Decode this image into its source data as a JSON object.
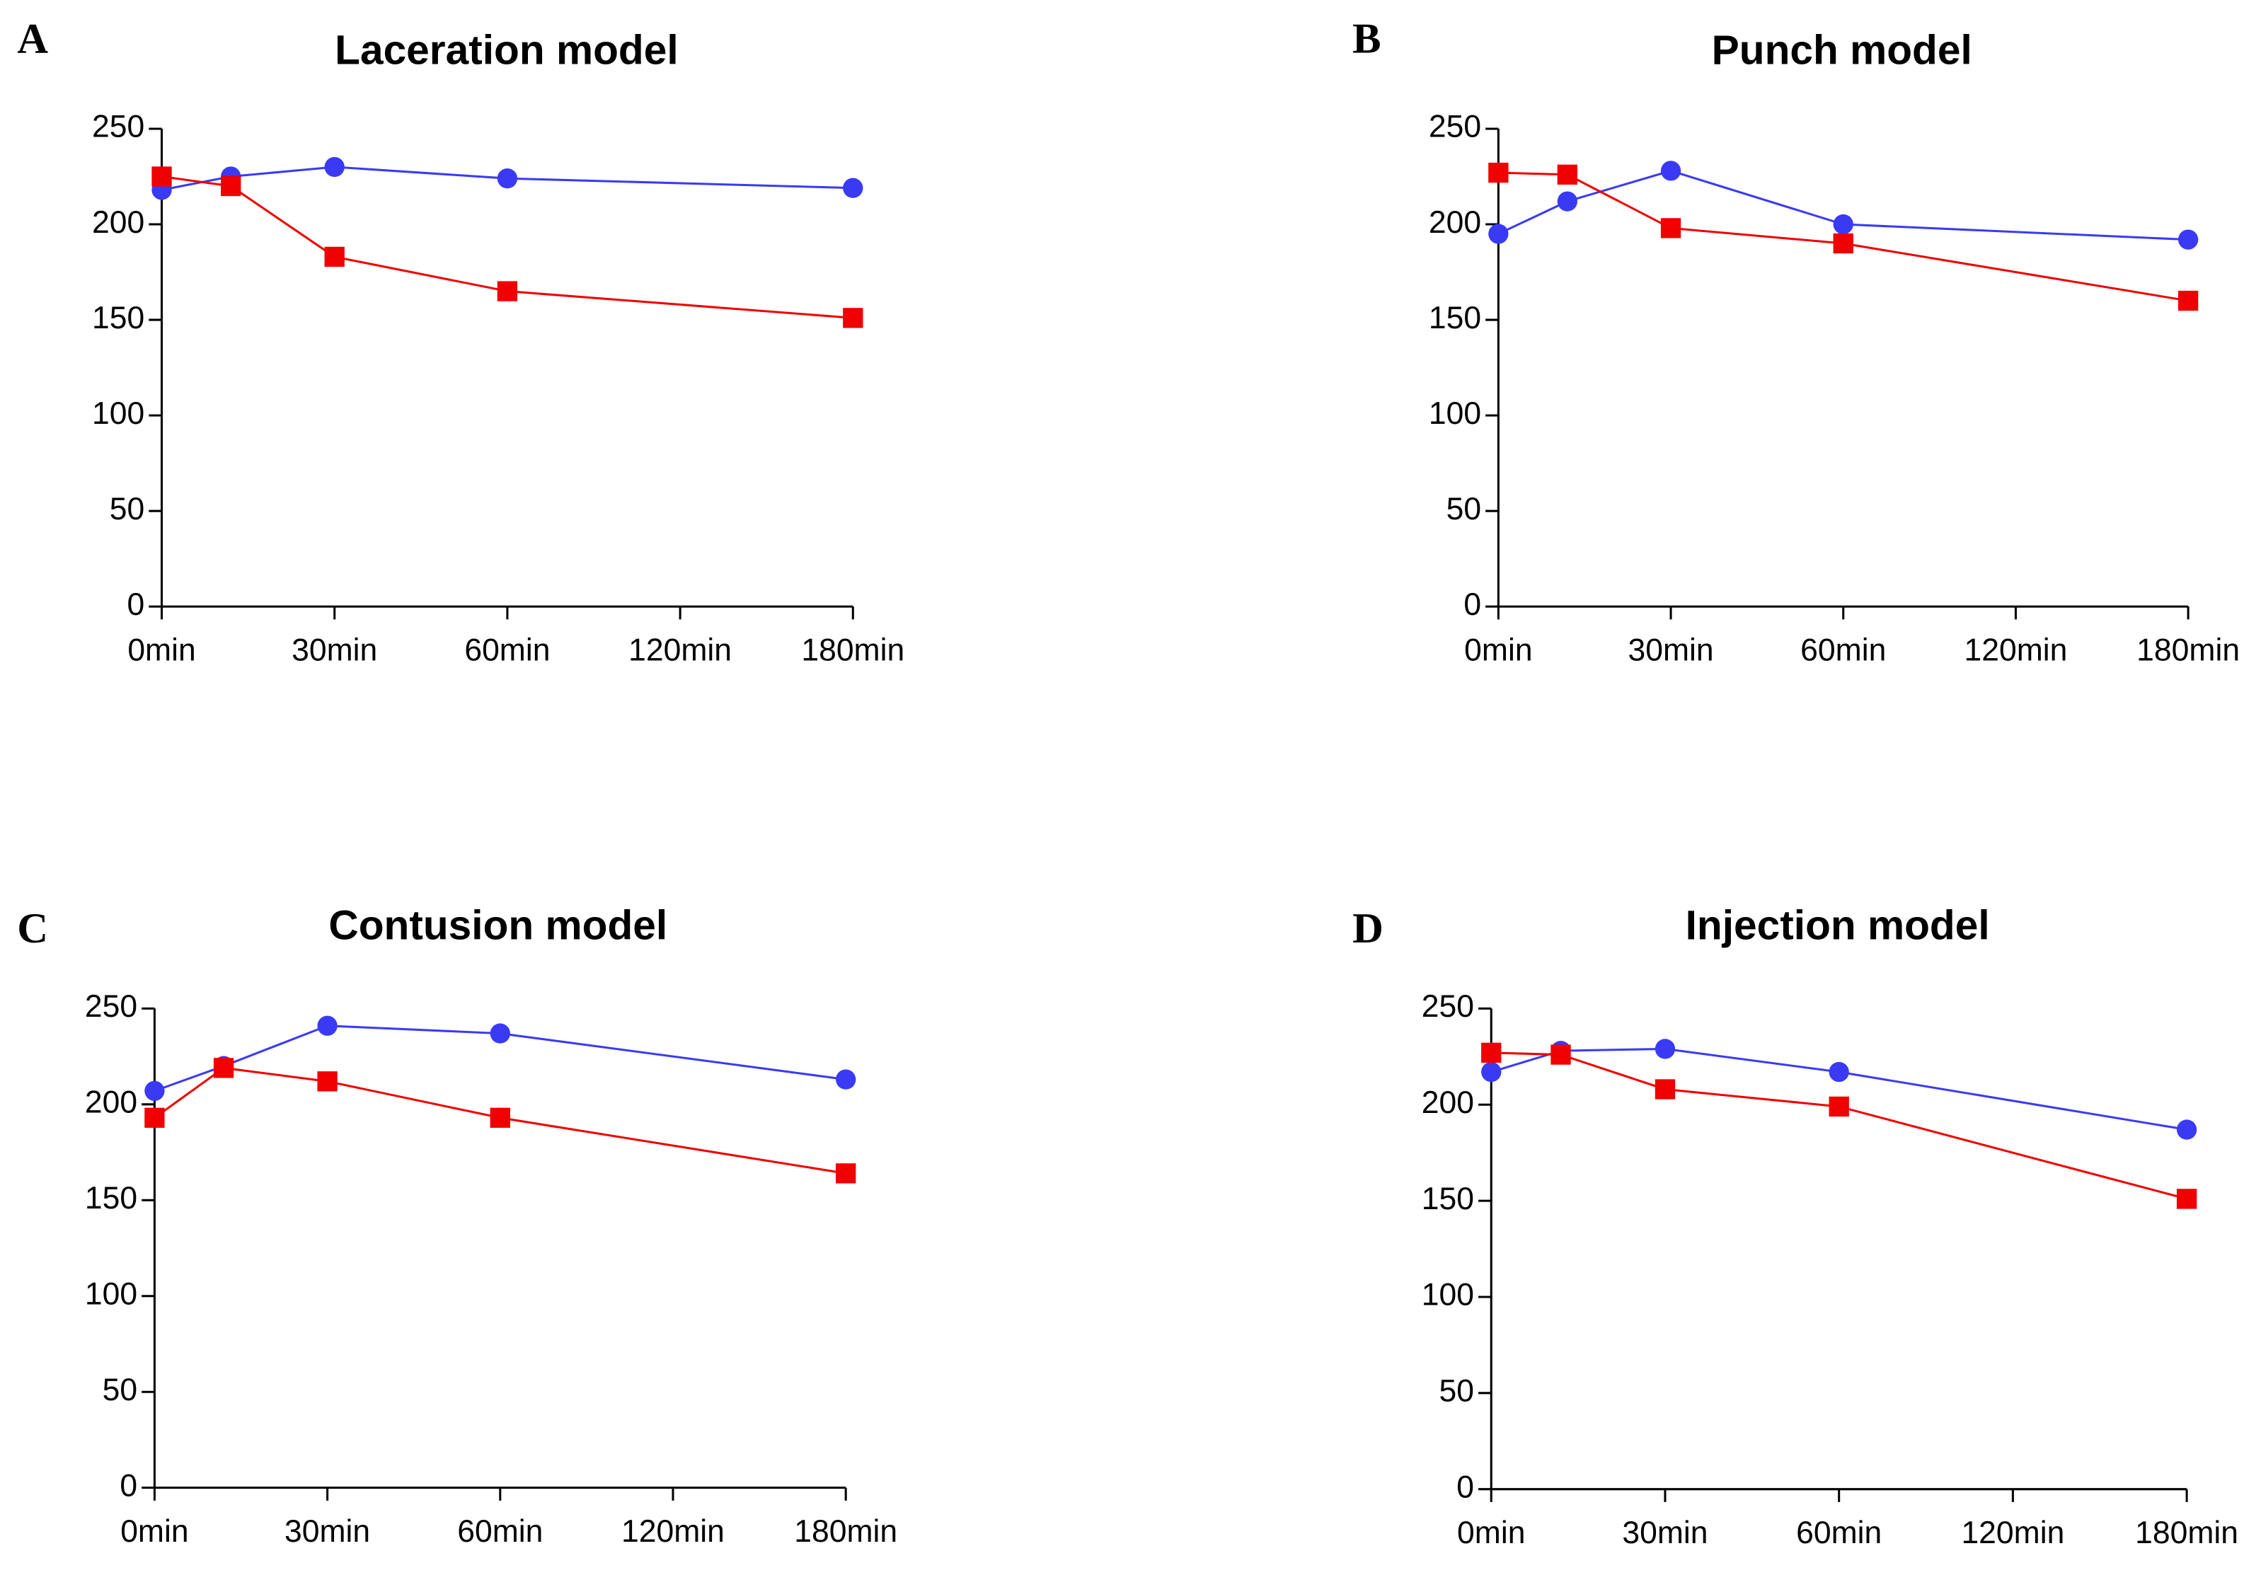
{
  "chart_data": [
    {
      "type": "line",
      "panel": "A",
      "title": "Laceration model",
      "x": [
        0,
        0.4,
        1,
        2,
        4
      ],
      "xlim": [
        0,
        4
      ],
      "xticks": [
        {
          "value": 0,
          "label": "0min"
        },
        {
          "value": 1,
          "label": "30min"
        },
        {
          "value": 2,
          "label": "60min"
        },
        {
          "value": 3,
          "label": "120min"
        },
        {
          "value": 4,
          "label": "180min"
        }
      ],
      "ylim": [
        0,
        250
      ],
      "yticks": [
        0,
        50,
        100,
        150,
        200,
        250
      ],
      "series": [
        {
          "color": "#3a3af5",
          "values": [
            218,
            225,
            230,
            224,
            219
          ]
        },
        {
          "color": "#f00000",
          "values": [
            225,
            220,
            183,
            165,
            151
          ]
        }
      ]
    },
    {
      "type": "line",
      "panel": "B",
      "title": "Punch model",
      "x": [
        0,
        0.4,
        1,
        2,
        4
      ],
      "xlim": [
        0,
        4
      ],
      "xticks": [
        {
          "value": 0,
          "label": "0min"
        },
        {
          "value": 1,
          "label": "30min"
        },
        {
          "value": 2,
          "label": "60min"
        },
        {
          "value": 3,
          "label": "120min"
        },
        {
          "value": 4,
          "label": "180min"
        }
      ],
      "ylim": [
        0,
        250
      ],
      "yticks": [
        0,
        50,
        100,
        150,
        200,
        250
      ],
      "series": [
        {
          "color": "#3a3af5",
          "values": [
            195,
            212,
            228,
            200,
            192
          ]
        },
        {
          "color": "#f00000",
          "values": [
            227,
            226,
            198,
            190,
            160
          ]
        }
      ]
    },
    {
      "type": "line",
      "panel": "C",
      "title": "Contusion model",
      "x": [
        0,
        0.4,
        1,
        2,
        4
      ],
      "xlim": [
        0,
        4
      ],
      "xticks": [
        {
          "value": 0,
          "label": "0min"
        },
        {
          "value": 1,
          "label": "30min"
        },
        {
          "value": 2,
          "label": "60min"
        },
        {
          "value": 3,
          "label": "120min"
        },
        {
          "value": 4,
          "label": "180min"
        }
      ],
      "ylim": [
        0,
        250
      ],
      "yticks": [
        0,
        50,
        100,
        150,
        200,
        250
      ],
      "series": [
        {
          "color": "#3a3af5",
          "values": [
            207,
            220,
            241,
            237,
            213
          ]
        },
        {
          "color": "#f00000",
          "values": [
            193,
            219,
            212,
            193,
            164
          ]
        }
      ]
    },
    {
      "type": "line",
      "panel": "D",
      "title": "Injection model",
      "x": [
        0,
        0.4,
        1,
        2,
        4
      ],
      "xlim": [
        0,
        4
      ],
      "xticks": [
        {
          "value": 0,
          "label": "0min"
        },
        {
          "value": 1,
          "label": "30min"
        },
        {
          "value": 2,
          "label": "60min"
        },
        {
          "value": 3,
          "label": "120min"
        },
        {
          "value": 4,
          "label": "180min"
        }
      ],
      "ylim": [
        0,
        250
      ],
      "yticks": [
        0,
        50,
        100,
        150,
        200,
        250
      ],
      "series": [
        {
          "color": "#3a3af5",
          "values": [
            217,
            228,
            229,
            217,
            187
          ]
        },
        {
          "color": "#f00000",
          "values": [
            227,
            226,
            208,
            199,
            151
          ]
        }
      ]
    }
  ]
}
